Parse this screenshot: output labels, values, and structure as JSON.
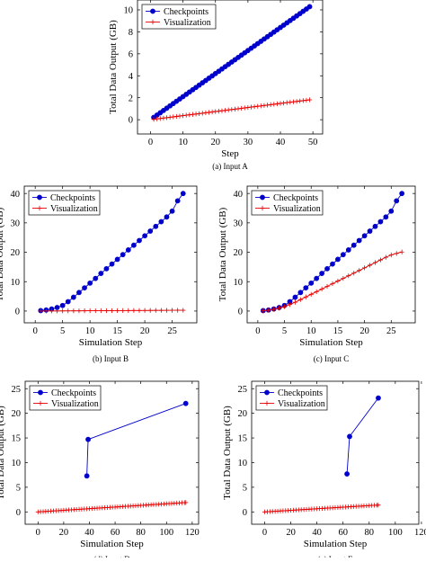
{
  "chart_data": [
    {
      "id": "a",
      "type": "line",
      "caption": "(a) Input A",
      "xlabel": "Step",
      "ylabel": "Total Data Output (GB)",
      "xlim": [
        -4,
        53
      ],
      "ylim": [
        -1.3,
        10.9
      ],
      "xticks": [
        0,
        10,
        20,
        30,
        40,
        50
      ],
      "yticks": [
        0,
        2,
        4,
        6,
        8,
        10
      ],
      "grid": false,
      "legend_position": "top-left",
      "series": [
        {
          "name": "Checkpoints",
          "color": "#0000cc",
          "marker": "circle",
          "x": [
            1,
            2,
            3,
            4,
            5,
            6,
            7,
            8,
            9,
            10,
            11,
            12,
            13,
            14,
            15,
            16,
            17,
            18,
            19,
            20,
            21,
            22,
            23,
            24,
            25,
            26,
            27,
            28,
            29,
            30,
            31,
            32,
            33,
            34,
            35,
            36,
            37,
            38,
            39,
            40,
            41,
            42,
            43,
            44,
            45,
            46,
            47,
            48,
            49
          ],
          "y": [
            0.21,
            0.42,
            0.63,
            0.84,
            1.05,
            1.26,
            1.47,
            1.68,
            1.89,
            2.1,
            2.31,
            2.52,
            2.73,
            2.94,
            3.15,
            3.36,
            3.57,
            3.78,
            3.99,
            4.2,
            4.41,
            4.62,
            4.83,
            5.04,
            5.25,
            5.46,
            5.67,
            5.88,
            6.09,
            6.3,
            6.51,
            6.72,
            6.93,
            7.14,
            7.35,
            7.56,
            7.77,
            7.98,
            8.19,
            8.4,
            8.61,
            8.82,
            9.03,
            9.24,
            9.45,
            9.66,
            9.87,
            10.08,
            10.29
          ]
        },
        {
          "name": "Visualization",
          "color": "#e60000",
          "marker": "plus",
          "x": [
            1,
            2,
            3,
            4,
            5,
            6,
            7,
            8,
            9,
            10,
            11,
            12,
            13,
            14,
            15,
            16,
            17,
            18,
            19,
            20,
            21,
            22,
            23,
            24,
            25,
            26,
            27,
            28,
            29,
            30,
            31,
            32,
            33,
            34,
            35,
            36,
            37,
            38,
            39,
            40,
            41,
            42,
            43,
            44,
            45,
            46,
            47,
            48,
            49
          ],
          "y": [
            0.037,
            0.074,
            0.111,
            0.148,
            0.185,
            0.222,
            0.259,
            0.296,
            0.333,
            0.37,
            0.407,
            0.444,
            0.481,
            0.518,
            0.555,
            0.592,
            0.629,
            0.666,
            0.703,
            0.74,
            0.777,
            0.814,
            0.851,
            0.888,
            0.925,
            0.962,
            0.999,
            1.036,
            1.073,
            1.11,
            1.147,
            1.184,
            1.221,
            1.258,
            1.295,
            1.332,
            1.369,
            1.406,
            1.443,
            1.48,
            1.517,
            1.554,
            1.591,
            1.628,
            1.665,
            1.702,
            1.739,
            1.776,
            1.813
          ]
        }
      ]
    },
    {
      "id": "b",
      "type": "line",
      "caption": "(b) Input B",
      "xlabel": "Simulation Step",
      "ylabel": "Total Data Output (GB)",
      "xlim": [
        -2,
        29.5
      ],
      "ylim": [
        -4,
        42.5
      ],
      "xticks": [
        0,
        5,
        10,
        15,
        20,
        25
      ],
      "yticks": [
        0,
        10,
        20,
        30,
        40
      ],
      "grid": false,
      "legend_position": "top-left",
      "series": [
        {
          "name": "Checkpoints",
          "color": "#0000cc",
          "marker": "circle",
          "x": [
            1,
            2,
            3,
            4,
            5,
            6,
            7,
            8,
            9,
            10,
            11,
            12,
            13,
            14,
            15,
            16,
            17,
            18,
            19,
            20,
            21,
            22,
            23,
            24,
            25,
            26,
            27
          ],
          "y": [
            0.15,
            0.35,
            0.7,
            1.2,
            1.9,
            3.2,
            4.7,
            6.3,
            7.9,
            9.5,
            11.1,
            12.8,
            14.4,
            16.0,
            17.6,
            19.2,
            20.8,
            22.4,
            24.0,
            25.6,
            27.2,
            28.8,
            30.4,
            32.0,
            34.0,
            37.5,
            40.0
          ]
        },
        {
          "name": "Visualization",
          "color": "#e60000",
          "marker": "plus",
          "x": [
            1,
            2,
            3,
            4,
            5,
            6,
            7,
            8,
            9,
            10,
            11,
            12,
            13,
            14,
            15,
            16,
            17,
            18,
            19,
            20,
            21,
            22,
            23,
            24,
            25,
            26,
            27
          ],
          "y": [
            0.01,
            0.02,
            0.03,
            0.04,
            0.05,
            0.06,
            0.07,
            0.08,
            0.09,
            0.1,
            0.11,
            0.12,
            0.13,
            0.14,
            0.15,
            0.16,
            0.17,
            0.18,
            0.19,
            0.2,
            0.21,
            0.22,
            0.23,
            0.24,
            0.25,
            0.26,
            0.27
          ]
        }
      ]
    },
    {
      "id": "c",
      "type": "line",
      "caption": "(c) Input C",
      "xlabel": "Simulation Step",
      "ylabel": "Total Data Output (GB)",
      "xlim": [
        -2,
        29.5
      ],
      "ylim": [
        -4,
        42.5
      ],
      "xticks": [
        0,
        5,
        10,
        15,
        20,
        25
      ],
      "yticks": [
        0,
        10,
        20,
        30,
        40
      ],
      "grid": false,
      "legend_position": "top-left",
      "series": [
        {
          "name": "Checkpoints",
          "color": "#0000cc",
          "marker": "circle",
          "x": [
            1,
            2,
            3,
            4,
            5,
            6,
            7,
            8,
            9,
            10,
            11,
            12,
            13,
            14,
            15,
            16,
            17,
            18,
            19,
            20,
            21,
            22,
            23,
            24,
            25,
            26,
            27
          ],
          "y": [
            0.15,
            0.35,
            0.7,
            1.2,
            1.9,
            3.2,
            4.7,
            6.3,
            7.9,
            9.5,
            11.1,
            12.8,
            14.4,
            16.0,
            17.6,
            19.2,
            20.8,
            22.4,
            24.0,
            25.6,
            27.2,
            28.8,
            30.4,
            32.0,
            34.0,
            37.5,
            40.0
          ]
        },
        {
          "name": "Visualization",
          "color": "#e60000",
          "marker": "plus",
          "x": [
            1,
            2,
            3,
            4,
            5,
            6,
            7,
            8,
            9,
            10,
            11,
            12,
            13,
            14,
            15,
            16,
            17,
            18,
            19,
            20,
            21,
            22,
            23,
            24,
            25,
            26,
            27
          ],
          "y": [
            0.1,
            0.3,
            0.6,
            1.0,
            1.5,
            2.2,
            3.0,
            3.9,
            4.8,
            5.7,
            6.6,
            7.5,
            8.4,
            9.3,
            10.2,
            11.1,
            12.0,
            12.9,
            13.8,
            14.7,
            15.6,
            16.5,
            17.4,
            18.3,
            19.1,
            19.6,
            20.1
          ]
        }
      ]
    },
    {
      "id": "d",
      "type": "line",
      "caption": "(d) Input D",
      "xlabel": "Simulation Step",
      "ylabel": "Total Data Output (GB)",
      "xlim": [
        -10,
        125
      ],
      "ylim": [
        -2.5,
        26.5
      ],
      "xticks": [
        0,
        20,
        40,
        60,
        80,
        100,
        120
      ],
      "yticks": [
        0,
        5,
        10,
        15,
        20,
        25
      ],
      "grid": false,
      "legend_position": "top-left",
      "series": [
        {
          "name": "Checkpoints",
          "color": "#0000cc",
          "marker": "circle",
          "x": [
            38,
            39,
            115
          ],
          "y": [
            7.3,
            14.7,
            22.0
          ]
        },
        {
          "name": "Visualization",
          "color": "#e60000",
          "marker": "plus",
          "x": [
            0,
            2,
            4,
            6,
            8,
            10,
            12,
            14,
            16,
            18,
            20,
            22,
            24,
            26,
            28,
            30,
            32,
            34,
            36,
            38,
            40,
            42,
            44,
            46,
            48,
            50,
            52,
            54,
            56,
            58,
            60,
            62,
            64,
            66,
            68,
            70,
            72,
            74,
            76,
            78,
            80,
            82,
            84,
            86,
            88,
            90,
            92,
            94,
            96,
            98,
            100,
            102,
            104,
            106,
            108,
            110,
            112,
            114,
            115
          ],
          "y": [
            0.0,
            0.033,
            0.066,
            0.099,
            0.132,
            0.165,
            0.198,
            0.231,
            0.264,
            0.297,
            0.33,
            0.363,
            0.396,
            0.429,
            0.462,
            0.495,
            0.528,
            0.561,
            0.594,
            0.627,
            0.66,
            0.693,
            0.726,
            0.759,
            0.792,
            0.825,
            0.858,
            0.891,
            0.924,
            0.957,
            0.99,
            1.023,
            1.056,
            1.089,
            1.122,
            1.155,
            1.188,
            1.221,
            1.254,
            1.287,
            1.32,
            1.353,
            1.386,
            1.419,
            1.452,
            1.485,
            1.518,
            1.551,
            1.584,
            1.617,
            1.65,
            1.683,
            1.716,
            1.749,
            1.782,
            1.815,
            1.848,
            1.881,
            1.9
          ]
        }
      ]
    },
    {
      "id": "e",
      "type": "line",
      "caption": "(e) Input E",
      "xlabel": "Simulation Step",
      "ylabel": "Total Data Output (GB)",
      "xlim": [
        -10,
        118
      ],
      "ylim": [
        -2.5,
        26.5
      ],
      "xticks": [
        0,
        20,
        40,
        60,
        80,
        100,
        120
      ],
      "yticks": [
        0,
        5,
        10,
        15,
        20,
        25
      ],
      "grid": false,
      "legend_position": "top-left",
      "series": [
        {
          "name": "Checkpoints",
          "color": "#0000cc",
          "marker": "circle",
          "x": [
            63,
            65,
            87
          ],
          "y": [
            7.7,
            15.3,
            23.1
          ]
        },
        {
          "name": "Visualization",
          "color": "#e60000",
          "marker": "plus",
          "x": [
            0,
            2,
            4,
            6,
            8,
            10,
            12,
            14,
            16,
            18,
            20,
            22,
            24,
            26,
            28,
            30,
            32,
            34,
            36,
            38,
            40,
            42,
            44,
            46,
            48,
            50,
            52,
            54,
            56,
            58,
            60,
            62,
            64,
            66,
            68,
            70,
            72,
            74,
            76,
            78,
            80,
            82,
            84,
            86,
            87
          ],
          "y": [
            0.0,
            0.032,
            0.064,
            0.096,
            0.128,
            0.16,
            0.192,
            0.224,
            0.256,
            0.288,
            0.32,
            0.352,
            0.384,
            0.416,
            0.448,
            0.48,
            0.512,
            0.544,
            0.576,
            0.608,
            0.64,
            0.672,
            0.704,
            0.736,
            0.768,
            0.8,
            0.832,
            0.864,
            0.896,
            0.928,
            0.96,
            0.992,
            1.024,
            1.056,
            1.088,
            1.12,
            1.152,
            1.184,
            1.216,
            1.248,
            1.28,
            1.312,
            1.344,
            1.376,
            1.39
          ]
        }
      ]
    }
  ]
}
